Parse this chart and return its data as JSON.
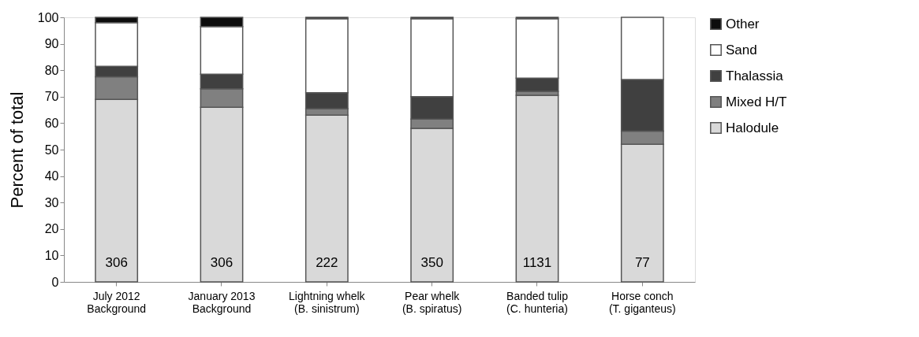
{
  "chart_data": {
    "type": "bar",
    "stacked": true,
    "ylabel": "Percent of total",
    "categories": [
      "July 2012\nBackground",
      "January 2013\nBackground",
      "Lightning whelk\n(B. sinistrum)",
      "Pear whelk\n(B. spiratus)",
      "Banded tulip\n(C. hunteria)",
      "Horse conch\n(T. giganteus)"
    ],
    "series": [
      {
        "name": "Halodule",
        "color": "#d9d9d9",
        "values": [
          69,
          66,
          63,
          58,
          70.5,
          52
        ]
      },
      {
        "name": "Mixed H/T",
        "color": "#808080",
        "values": [
          8.5,
          7,
          2.5,
          3.5,
          1.5,
          5
        ]
      },
      {
        "name": "Thalassia",
        "color": "#404040",
        "values": [
          4,
          5.5,
          6,
          8.5,
          5,
          19.5
        ]
      },
      {
        "name": "Sand",
        "color": "#ffffff",
        "values": [
          16.5,
          18,
          28,
          29.5,
          22.5,
          23.5
        ]
      },
      {
        "name": "Other",
        "color": "#0d0d0d",
        "values": [
          2,
          3.5,
          0.5,
          0.5,
          0.5,
          0
        ]
      }
    ],
    "ylim": [
      0,
      100
    ],
    "yticks": [
      0,
      10,
      20,
      30,
      40,
      50,
      60,
      70,
      80,
      90,
      100
    ],
    "grid": false,
    "legend": "right",
    "annotations": [
      "306",
      "306",
      "222",
      "350",
      "1131",
      "77"
    ]
  }
}
